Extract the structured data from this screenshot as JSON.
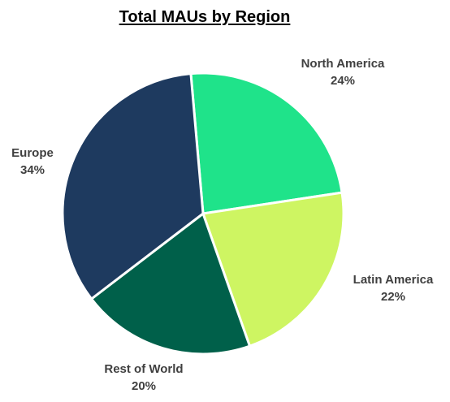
{
  "chart_data": {
    "type": "pie",
    "title": "Total MAUs by Region",
    "slices": [
      {
        "name": "North America",
        "value": 24,
        "label": "24%",
        "color": "#1fe38a"
      },
      {
        "name": "Latin America",
        "value": 22,
        "label": "22%",
        "color": "#cef562"
      },
      {
        "name": "Rest of World",
        "value": 20,
        "label": "20%",
        "color": "#00604a"
      },
      {
        "name": "Europe",
        "value": 34,
        "label": "34%",
        "color": "#1e3a5f"
      }
    ],
    "legend": "none",
    "label_position": "outside"
  }
}
